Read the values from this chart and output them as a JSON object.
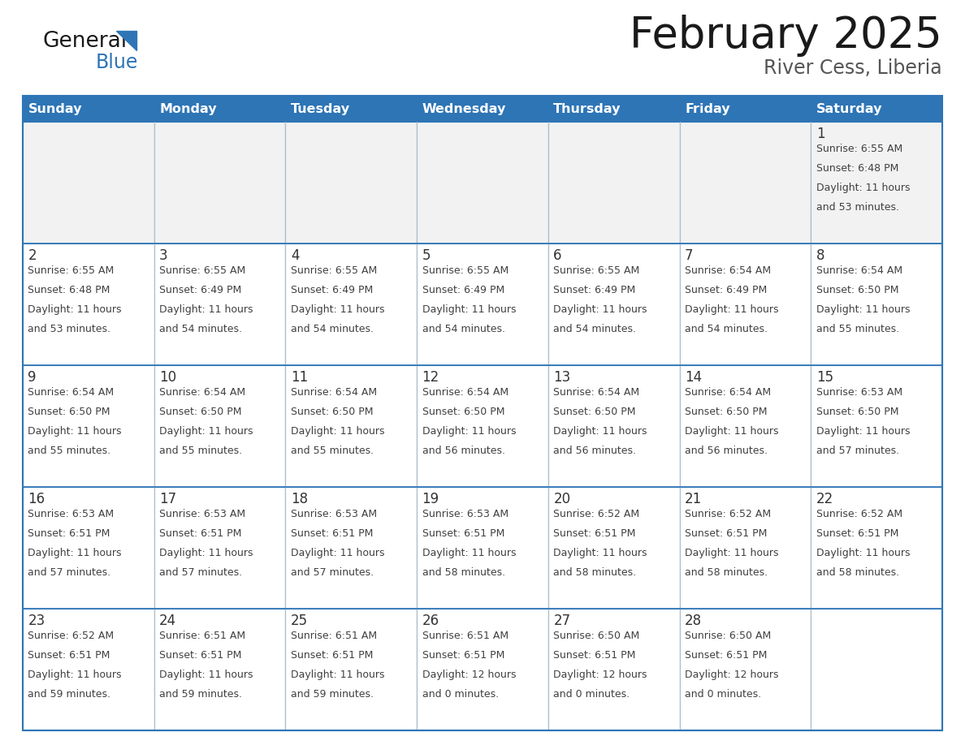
{
  "title": "February 2025",
  "subtitle": "River Cess, Liberia",
  "days_of_week": [
    "Sunday",
    "Monday",
    "Tuesday",
    "Wednesday",
    "Thursday",
    "Friday",
    "Saturday"
  ],
  "header_bg": "#2E75B6",
  "header_text": "#FFFFFF",
  "cell_bg_white": "#FFFFFF",
  "cell_bg_gray": "#F2F2F2",
  "border_color": "#2E75B6",
  "day_num_color": "#333333",
  "text_color": "#404040",
  "logo_general_color": "#1a1a1a",
  "logo_blue_color": "#2E75B6",
  "calendar_data": [
    [
      null,
      null,
      null,
      null,
      null,
      null,
      {
        "day": 1,
        "sunrise": "6:55 AM",
        "sunset": "6:48 PM",
        "daylight": "11 hours and 53 minutes."
      }
    ],
    [
      {
        "day": 2,
        "sunrise": "6:55 AM",
        "sunset": "6:48 PM",
        "daylight": "11 hours and 53 minutes."
      },
      {
        "day": 3,
        "sunrise": "6:55 AM",
        "sunset": "6:49 PM",
        "daylight": "11 hours and 54 minutes."
      },
      {
        "day": 4,
        "sunrise": "6:55 AM",
        "sunset": "6:49 PM",
        "daylight": "11 hours and 54 minutes."
      },
      {
        "day": 5,
        "sunrise": "6:55 AM",
        "sunset": "6:49 PM",
        "daylight": "11 hours and 54 minutes."
      },
      {
        "day": 6,
        "sunrise": "6:55 AM",
        "sunset": "6:49 PM",
        "daylight": "11 hours and 54 minutes."
      },
      {
        "day": 7,
        "sunrise": "6:54 AM",
        "sunset": "6:49 PM",
        "daylight": "11 hours and 54 minutes."
      },
      {
        "day": 8,
        "sunrise": "6:54 AM",
        "sunset": "6:50 PM",
        "daylight": "11 hours and 55 minutes."
      }
    ],
    [
      {
        "day": 9,
        "sunrise": "6:54 AM",
        "sunset": "6:50 PM",
        "daylight": "11 hours and 55 minutes."
      },
      {
        "day": 10,
        "sunrise": "6:54 AM",
        "sunset": "6:50 PM",
        "daylight": "11 hours and 55 minutes."
      },
      {
        "day": 11,
        "sunrise": "6:54 AM",
        "sunset": "6:50 PM",
        "daylight": "11 hours and 55 minutes."
      },
      {
        "day": 12,
        "sunrise": "6:54 AM",
        "sunset": "6:50 PM",
        "daylight": "11 hours and 56 minutes."
      },
      {
        "day": 13,
        "sunrise": "6:54 AM",
        "sunset": "6:50 PM",
        "daylight": "11 hours and 56 minutes."
      },
      {
        "day": 14,
        "sunrise": "6:54 AM",
        "sunset": "6:50 PM",
        "daylight": "11 hours and 56 minutes."
      },
      {
        "day": 15,
        "sunrise": "6:53 AM",
        "sunset": "6:50 PM",
        "daylight": "11 hours and 57 minutes."
      }
    ],
    [
      {
        "day": 16,
        "sunrise": "6:53 AM",
        "sunset": "6:51 PM",
        "daylight": "11 hours and 57 minutes."
      },
      {
        "day": 17,
        "sunrise": "6:53 AM",
        "sunset": "6:51 PM",
        "daylight": "11 hours and 57 minutes."
      },
      {
        "day": 18,
        "sunrise": "6:53 AM",
        "sunset": "6:51 PM",
        "daylight": "11 hours and 57 minutes."
      },
      {
        "day": 19,
        "sunrise": "6:53 AM",
        "sunset": "6:51 PM",
        "daylight": "11 hours and 58 minutes."
      },
      {
        "day": 20,
        "sunrise": "6:52 AM",
        "sunset": "6:51 PM",
        "daylight": "11 hours and 58 minutes."
      },
      {
        "day": 21,
        "sunrise": "6:52 AM",
        "sunset": "6:51 PM",
        "daylight": "11 hours and 58 minutes."
      },
      {
        "day": 22,
        "sunrise": "6:52 AM",
        "sunset": "6:51 PM",
        "daylight": "11 hours and 58 minutes."
      }
    ],
    [
      {
        "day": 23,
        "sunrise": "6:52 AM",
        "sunset": "6:51 PM",
        "daylight": "11 hours and 59 minutes."
      },
      {
        "day": 24,
        "sunrise": "6:51 AM",
        "sunset": "6:51 PM",
        "daylight": "11 hours and 59 minutes."
      },
      {
        "day": 25,
        "sunrise": "6:51 AM",
        "sunset": "6:51 PM",
        "daylight": "11 hours and 59 minutes."
      },
      {
        "day": 26,
        "sunrise": "6:51 AM",
        "sunset": "6:51 PM",
        "daylight": "12 hours and 0 minutes."
      },
      {
        "day": 27,
        "sunrise": "6:50 AM",
        "sunset": "6:51 PM",
        "daylight": "12 hours and 0 minutes."
      },
      {
        "day": 28,
        "sunrise": "6:50 AM",
        "sunset": "6:51 PM",
        "daylight": "12 hours and 0 minutes."
      },
      null
    ]
  ]
}
